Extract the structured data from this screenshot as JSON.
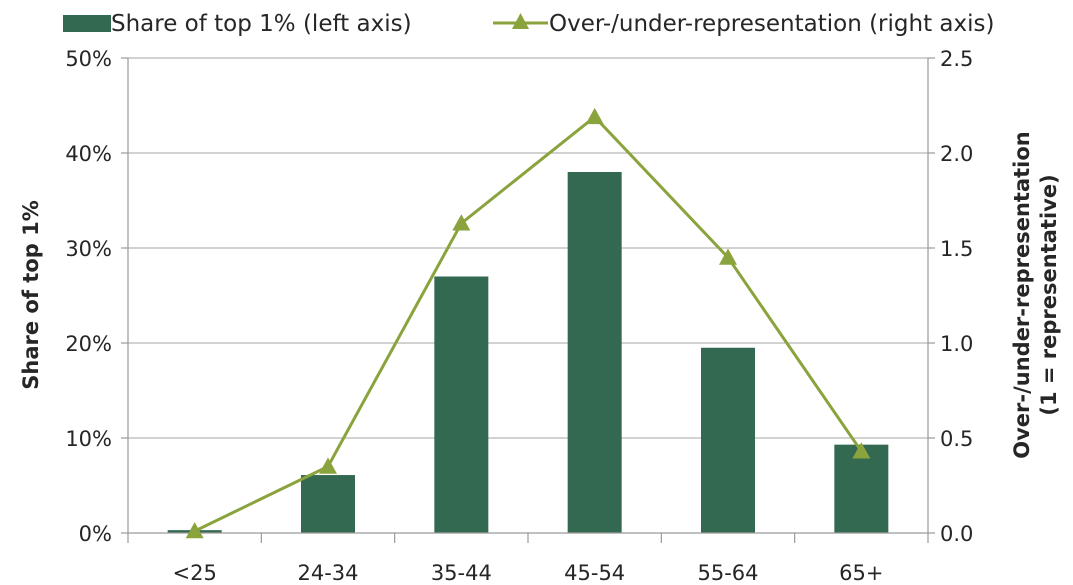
{
  "chart_data": {
    "type": "bar",
    "categories": [
      "<25",
      "24-34",
      "35-44",
      "45-54",
      "55-64",
      "65+"
    ],
    "series": [
      {
        "name": "Share of top 1% (left axis)",
        "type": "bar",
        "axis": "left",
        "color": "#336950",
        "values": [
          0.3,
          6.1,
          27.0,
          38.0,
          19.5,
          9.3
        ]
      },
      {
        "name": "Over-/under-representation (right axis)",
        "type": "line",
        "marker": "triangle",
        "axis": "right",
        "color": "#8aa33c",
        "values": [
          0.01,
          0.35,
          1.63,
          2.19,
          1.45,
          0.43
        ]
      }
    ],
    "left_axis": {
      "label": "Share of top 1%",
      "ylim": [
        0,
        50
      ],
      "ticks": [
        0,
        10,
        20,
        30,
        40,
        50
      ],
      "tick_labels": [
        "0%",
        "10%",
        "20%",
        "30%",
        "40%",
        "50%"
      ]
    },
    "right_axis": {
      "label_line1": "Over-/under-representation",
      "label_line2": "(1 = representative)",
      "ylim": [
        0,
        2.5
      ],
      "ticks": [
        0,
        0.5,
        1.0,
        1.5,
        2.0,
        2.5
      ],
      "tick_labels": [
        "0.0",
        "0.5",
        "1.0",
        "1.5",
        "2.0",
        "2.5"
      ]
    },
    "grid": true,
    "legend_position": "top"
  }
}
